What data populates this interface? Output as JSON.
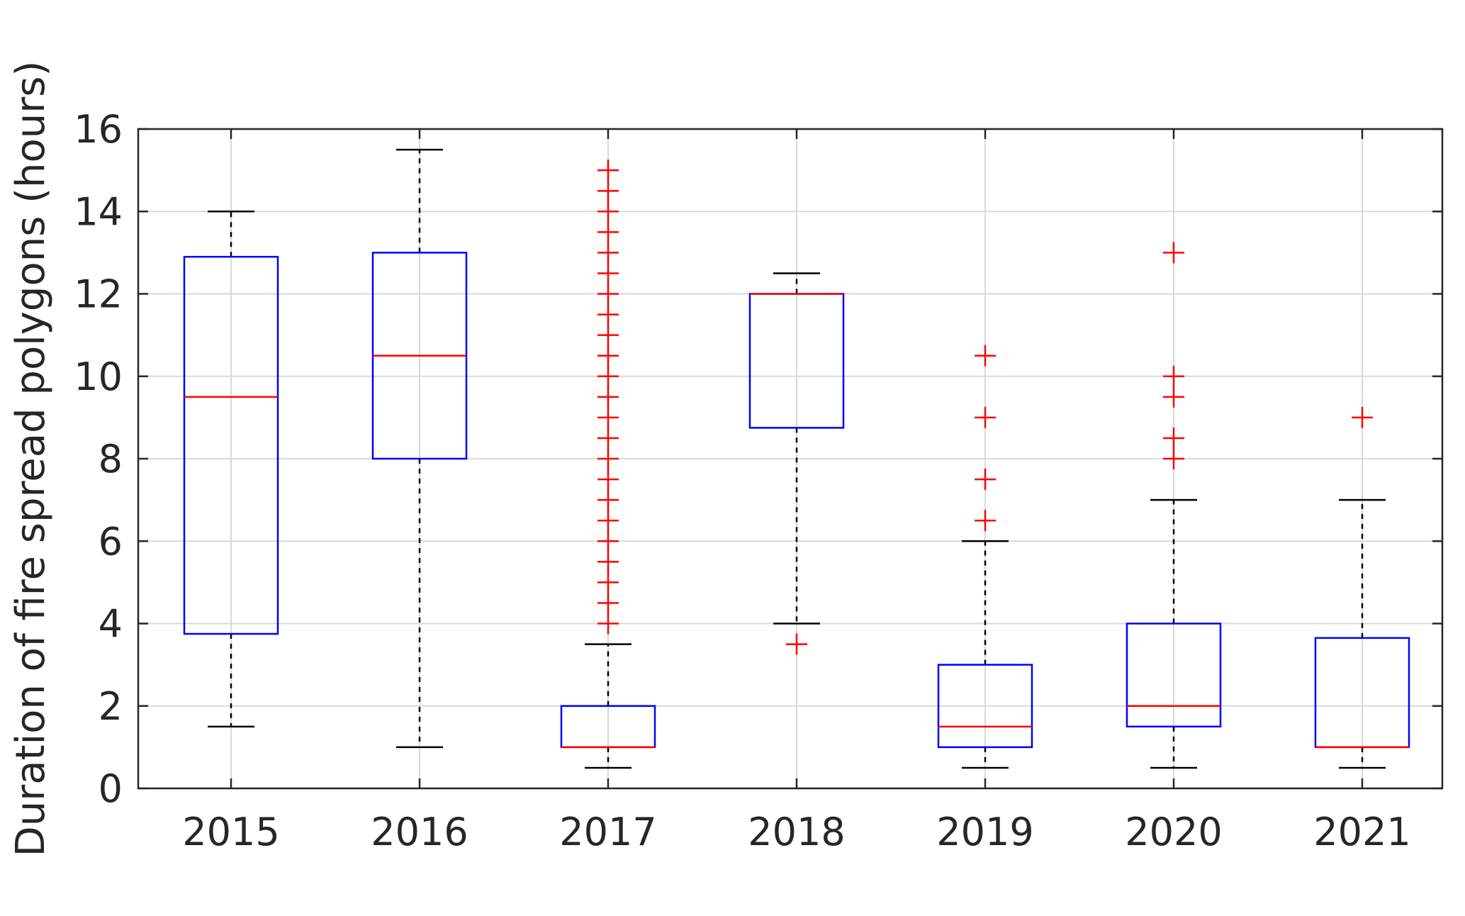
{
  "chart_data": {
    "type": "boxplot",
    "title": "",
    "xlabel": "",
    "ylabel": "Duration of fire spread polygons (hours)",
    "ylim": [
      0,
      16
    ],
    "yticks": [
      "0",
      "2",
      "4",
      "6",
      "8",
      "10",
      "12",
      "14",
      "16"
    ],
    "grid": true,
    "categories": [
      "2015",
      "2016",
      "2017",
      "2018",
      "2019",
      "2020",
      "2021"
    ],
    "boxes": [
      {
        "label": "2015",
        "whisker_low": 1.5,
        "q1": 3.75,
        "median": 9.5,
        "q3": 12.9,
        "whisker_high": 14,
        "outliers": []
      },
      {
        "label": "2016",
        "whisker_low": 1.0,
        "q1": 8.0,
        "median": 10.5,
        "q3": 13.0,
        "whisker_high": 15.5,
        "outliers": []
      },
      {
        "label": "2017",
        "whisker_low": 0.5,
        "q1": 1.0,
        "median": 1.0,
        "q3": 2.0,
        "whisker_high": 3.5,
        "outliers": [
          4.0,
          4.5,
          5.0,
          5.5,
          6.0,
          6.5,
          7.0,
          7.5,
          8.0,
          8.5,
          9.0,
          9.5,
          10.0,
          10.5,
          11.0,
          11.5,
          12.0,
          12.5,
          13.0,
          13.5,
          14.0,
          14.5,
          15.0
        ]
      },
      {
        "label": "2018",
        "whisker_low": 4.0,
        "q1": 8.75,
        "median": 12.0,
        "q3": 12.0,
        "whisker_high": 12.5,
        "outliers": [
          3.5
        ]
      },
      {
        "label": "2019",
        "whisker_low": 0.5,
        "q1": 1.0,
        "median": 1.5,
        "q3": 3.0,
        "whisker_high": 6.0,
        "outliers": [
          6.5,
          7.5,
          9.0,
          10.5
        ]
      },
      {
        "label": "2020",
        "whisker_low": 0.5,
        "q1": 1.5,
        "median": 2.0,
        "q3": 4.0,
        "whisker_high": 7.0,
        "outliers": [
          8.0,
          8.5,
          9.5,
          10.0,
          13.0
        ]
      },
      {
        "label": "2021",
        "whisker_low": 0.5,
        "q1": 1.0,
        "median": 1.0,
        "q3": 3.65,
        "whisker_high": 7.0,
        "outliers": [
          9.0
        ]
      }
    ],
    "colors": {
      "box": "#0000ff",
      "median": "#ff0000",
      "outlier": "#ff0000",
      "whisker": "#000000",
      "grid": "#d9d9d9",
      "axis": "#262626"
    }
  }
}
